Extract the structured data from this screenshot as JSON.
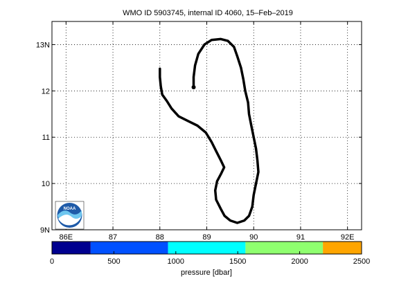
{
  "title": "WMO ID 5903745, internal ID 4060, 15–Feb–2019",
  "map": {
    "lon_range": [
      85.7,
      92.3
    ],
    "lat_range": [
      9.0,
      13.5
    ],
    "lon_ticks": [
      {
        "value": 86,
        "label": "86E"
      },
      {
        "value": 87,
        "label": "87"
      },
      {
        "value": 88,
        "label": "88"
      },
      {
        "value": 89,
        "label": "89"
      },
      {
        "value": 90,
        "label": "90"
      },
      {
        "value": 91,
        "label": "91"
      },
      {
        "value": 92,
        "label": "92E"
      }
    ],
    "lat_ticks": [
      {
        "value": 9,
        "label": "9N"
      },
      {
        "value": 10,
        "label": "10"
      },
      {
        "value": 11,
        "label": "11"
      },
      {
        "value": 12,
        "label": "12"
      },
      {
        "value": 13,
        "label": "13N"
      }
    ],
    "grid": true,
    "track_color": "#000000",
    "track": [
      [
        88.0,
        12.48
      ],
      [
        88.0,
        12.3
      ],
      [
        88.02,
        12.1
      ],
      [
        88.05,
        11.92
      ],
      [
        88.15,
        11.78
      ],
      [
        88.25,
        11.62
      ],
      [
        88.4,
        11.45
      ],
      [
        88.6,
        11.35
      ],
      [
        88.8,
        11.25
      ],
      [
        88.98,
        11.1
      ],
      [
        89.1,
        10.9
      ],
      [
        89.2,
        10.7
      ],
      [
        89.3,
        10.5
      ],
      [
        89.37,
        10.35
      ],
      [
        89.3,
        10.2
      ],
      [
        89.22,
        10.05
      ],
      [
        89.18,
        9.85
      ],
      [
        89.2,
        9.65
      ],
      [
        89.3,
        9.45
      ],
      [
        89.38,
        9.3
      ],
      [
        89.5,
        9.2
      ],
      [
        89.65,
        9.15
      ],
      [
        89.8,
        9.2
      ],
      [
        89.9,
        9.3
      ],
      [
        89.97,
        9.5
      ],
      [
        90.0,
        9.75
      ],
      [
        90.05,
        10.0
      ],
      [
        90.1,
        10.25
      ],
      [
        90.08,
        10.5
      ],
      [
        90.05,
        10.75
      ],
      [
        90.0,
        11.0
      ],
      [
        89.95,
        11.25
      ],
      [
        89.9,
        11.5
      ],
      [
        89.88,
        11.75
      ],
      [
        89.82,
        12.0
      ],
      [
        89.78,
        12.25
      ],
      [
        89.73,
        12.5
      ],
      [
        89.65,
        12.75
      ],
      [
        89.58,
        12.95
      ],
      [
        89.45,
        13.08
      ],
      [
        89.3,
        13.12
      ],
      [
        89.1,
        13.1
      ],
      [
        88.95,
        13.0
      ],
      [
        88.82,
        12.8
      ],
      [
        88.75,
        12.55
      ],
      [
        88.72,
        12.3
      ],
      [
        88.72,
        12.08
      ]
    ]
  },
  "colorbar": {
    "label": "pressure [dbar]",
    "range": [
      0,
      2500
    ],
    "segments": [
      {
        "from": 0,
        "to": 312.5,
        "color": "#00008f"
      },
      {
        "from": 312.5,
        "to": 937.5,
        "color": "#0050ff"
      },
      {
        "from": 937.5,
        "to": 1562.5,
        "color": "#00ffff"
      },
      {
        "from": 1562.5,
        "to": 2187.5,
        "color": "#8fff6f"
      },
      {
        "from": 2187.5,
        "to": 2500,
        "color": "#ffa500"
      }
    ],
    "ticks": [
      {
        "value": 0,
        "label": "0"
      },
      {
        "value": 500,
        "label": "500"
      },
      {
        "value": 1000,
        "label": "1000"
      },
      {
        "value": 1500,
        "label": "1500"
      },
      {
        "value": 2000,
        "label": "2000"
      },
      {
        "value": 2500,
        "label": "2500"
      }
    ]
  },
  "logo": {
    "text": "NOAA",
    "icon": "noaa-logo-icon"
  }
}
